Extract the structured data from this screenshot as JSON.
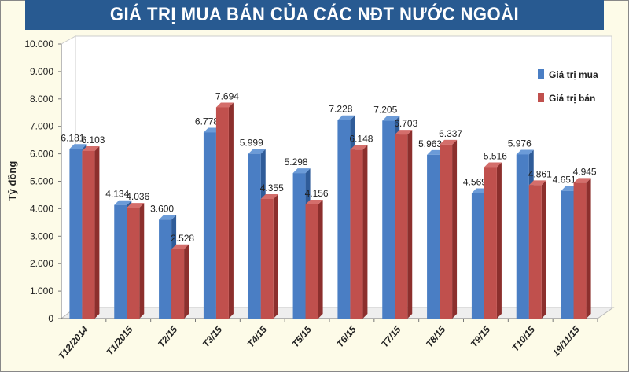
{
  "chart_data": {
    "type": "bar",
    "title": "GIÁ TRỊ MUA BÁN CỦA CÁC NĐT NƯỚC NGOÀI",
    "xlabel": "",
    "ylabel": "Tỷ đồng",
    "ylim": [
      0,
      10000
    ],
    "yticks": [
      "0",
      "1.000",
      "2.000",
      "3.000",
      "4.000",
      "5.000",
      "6.000",
      "7.000",
      "8.000",
      "9.000",
      "10.000"
    ],
    "categories": [
      "T12/2014",
      "T1/2015",
      "T2/15",
      "T3/15",
      "T4/15",
      "T5/15",
      "T6/15",
      "T7/15",
      "T8/15",
      "T9/15",
      "T10/15",
      "19/11/15"
    ],
    "series": [
      {
        "name": "Giá trị mua",
        "color": "#4a7ec4",
        "values": [
          6181,
          4134,
          3600,
          6778,
          5999,
          5298,
          7228,
          7205,
          5963,
          4569,
          5976,
          4651
        ],
        "labels": [
          "6.181",
          "4.134",
          "3.600",
          "6.778",
          "5.999",
          "5.298",
          "7.228",
          "7.205",
          "5.963",
          "4.569",
          "5.976",
          "4.651"
        ]
      },
      {
        "name": "Giá trị bán",
        "color": "#c0504d",
        "values": [
          6103,
          4036,
          2528,
          7694,
          4355,
          4156,
          6148,
          6703,
          6337,
          5516,
          4861,
          4945
        ],
        "labels": [
          "6.103",
          "4.036",
          "2.528",
          "7.694",
          "4.355",
          "4.156",
          "6.148",
          "6.703",
          "6.337",
          "5.516",
          "4.861",
          "4.945"
        ]
      }
    ],
    "legend": "top-right",
    "grid": false
  }
}
